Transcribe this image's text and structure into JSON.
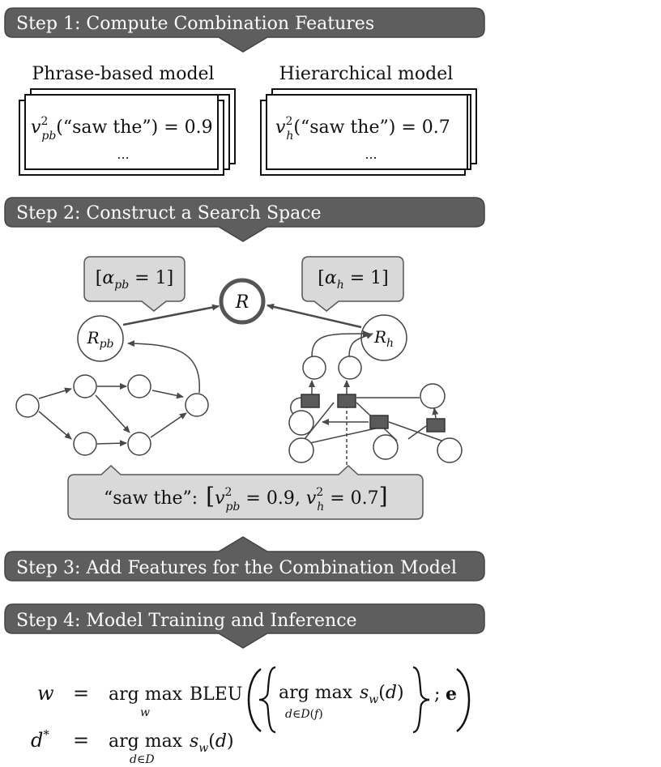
{
  "steps": {
    "s1": "Step 1: Compute Combination Features",
    "s2": "Step 2: Construct a Search Space",
    "s3": "Step 3: Add Features for the Combination Model",
    "s4": "Step 4: Model Training and Inference"
  },
  "models": {
    "pb_title": "Phrase-based model",
    "h_title": "Hierarchical model",
    "ellipsis": "..."
  },
  "features": {
    "phrase": "“saw the”",
    "pb_value": "0.9",
    "h_value": "0.7"
  },
  "nodes": {
    "root": "R",
    "pb_sub": "pb",
    "h_sub": "h"
  },
  "weights": {
    "alpha": "α",
    "value": "1"
  },
  "phrase_box": {
    "label": "“saw the”:"
  },
  "equations": {
    "w": "w",
    "eq": "=",
    "argmax": "arg max",
    "bleu": "BLEU",
    "sw": "s",
    "d": "d",
    "dstar": "d*",
    "D": "D",
    "f": "f",
    "e": "e"
  },
  "colors": {
    "banner": "#5e5e5e",
    "callout": "#d9d9d9",
    "stroke": "#4a4a4a",
    "hyper": "#5a5a5a"
  }
}
